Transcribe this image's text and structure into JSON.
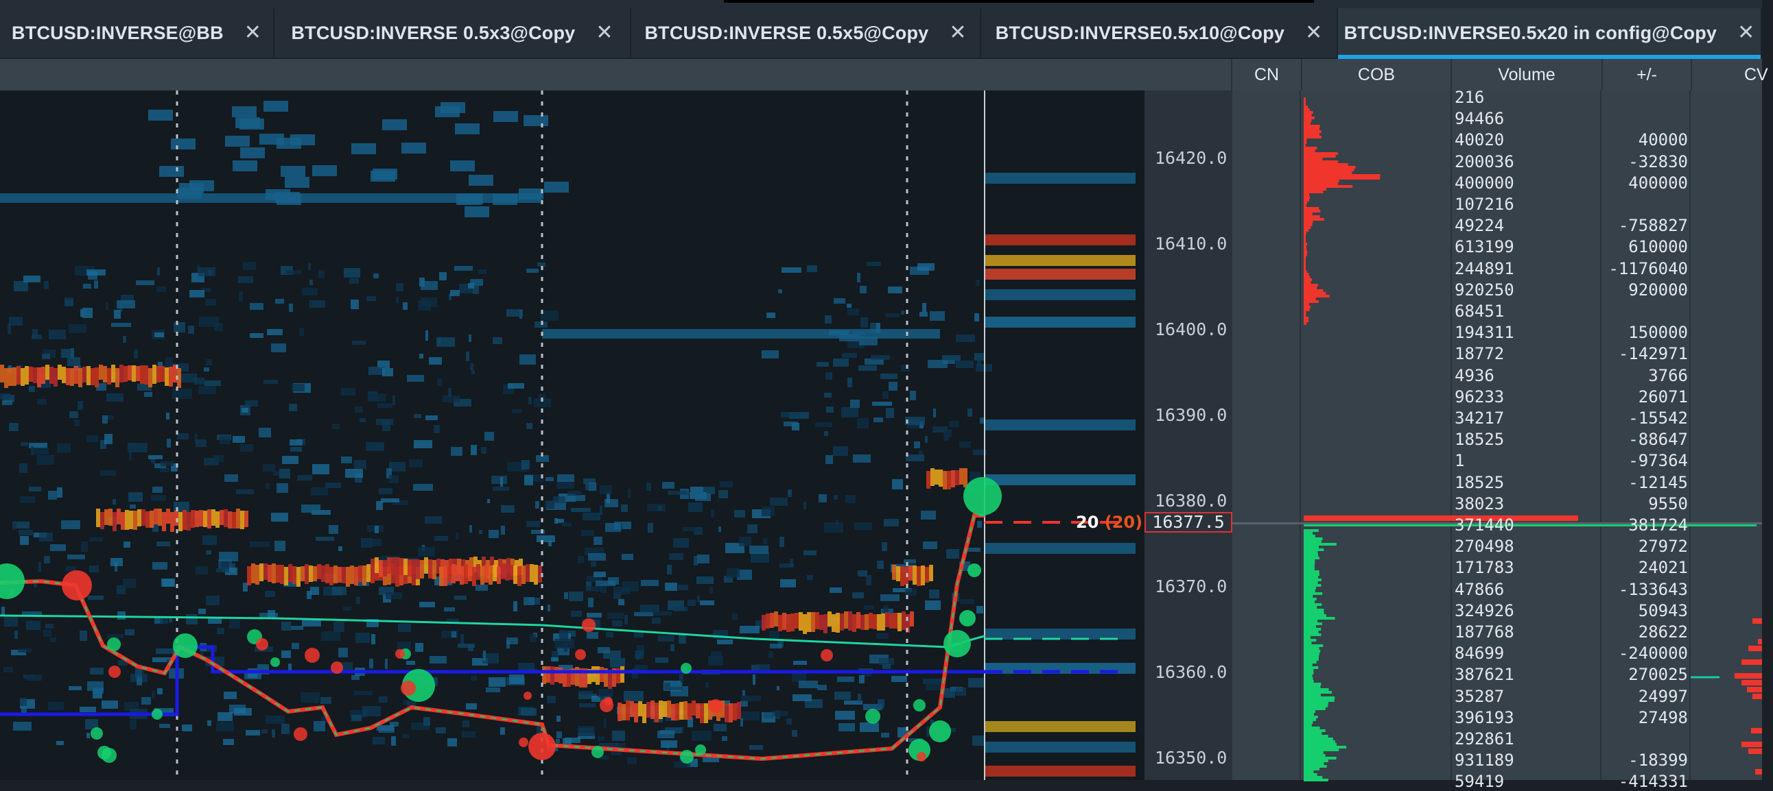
{
  "tabs": [
    {
      "label": "BTCUSD:INVERSE@BB",
      "close": "✕",
      "active": false
    },
    {
      "label": "BTCUSD:INVERSE 0.5x3@Copy",
      "close": "✕",
      "active": false
    },
    {
      "label": "BTCUSD:INVERSE 0.5x5@Copy",
      "close": "✕",
      "active": false
    },
    {
      "label": "BTCUSD:INVERSE0.5x10@Copy",
      "close": "✕",
      "active": false
    },
    {
      "label": "BTCUSD:INVERSE0.5x20 in config@Copy",
      "close": "✕",
      "active": true
    }
  ],
  "columns": {
    "cn": "CN",
    "cob": "COB",
    "volume": "Volume",
    "plusminus": "+/-",
    "cv": "CV"
  },
  "price_axis": [
    "16420.0",
    "16410.0",
    "16400.0",
    "16390.0",
    "16380.0",
    "16370.0",
    "16360.0",
    "16350.0"
  ],
  "current_price": "16377.5",
  "order_size": {
    "value": "20",
    "bracket": "(20)"
  },
  "ladder_rows": [
    {
      "volume": "216",
      "pm": ""
    },
    {
      "volume": "94466",
      "pm": ""
    },
    {
      "volume": "40020",
      "pm": "40000"
    },
    {
      "volume": "200036",
      "pm": "-32830"
    },
    {
      "volume": "400000",
      "pm": "400000"
    },
    {
      "volume": "107216",
      "pm": ""
    },
    {
      "volume": "49224",
      "pm": "-758827"
    },
    {
      "volume": "613199",
      "pm": "610000"
    },
    {
      "volume": "244891",
      "pm": "-1176040"
    },
    {
      "volume": "920250",
      "pm": "920000"
    },
    {
      "volume": "68451",
      "pm": ""
    },
    {
      "volume": "194311",
      "pm": "150000"
    },
    {
      "volume": "18772",
      "pm": "-142971"
    },
    {
      "volume": "4936",
      "pm": "3766"
    },
    {
      "volume": "96233",
      "pm": "26071"
    },
    {
      "volume": "34217",
      "pm": "-15542"
    },
    {
      "volume": "18525",
      "pm": "-88647"
    },
    {
      "volume": "1",
      "pm": "-97364"
    },
    {
      "volume": "18525",
      "pm": "-12145"
    },
    {
      "volume": "38023",
      "pm": "9550"
    },
    {
      "volume": "371440",
      "pm": "381724"
    },
    {
      "volume": "270498",
      "pm": "27972"
    },
    {
      "volume": "171783",
      "pm": "24021"
    },
    {
      "volume": "47866",
      "pm": "-133643"
    },
    {
      "volume": "324926",
      "pm": "50943"
    },
    {
      "volume": "187768",
      "pm": "28622"
    },
    {
      "volume": "84699",
      "pm": "-240000"
    },
    {
      "volume": "387621",
      "pm": "270025"
    },
    {
      "volume": "35287",
      "pm": "24997"
    },
    {
      "volume": "396193",
      "pm": "27498"
    },
    {
      "volume": "292861",
      "pm": ""
    },
    {
      "volume": "931189",
      "pm": "-18399"
    },
    {
      "volume": "59419",
      "pm": "-414331"
    }
  ],
  "colors": {
    "ask": "#f0362c",
    "bid": "#15cf6e",
    "accent": "#1fa2e5",
    "vwap": "#1fd6a0",
    "level": "#1a1ae6"
  }
}
